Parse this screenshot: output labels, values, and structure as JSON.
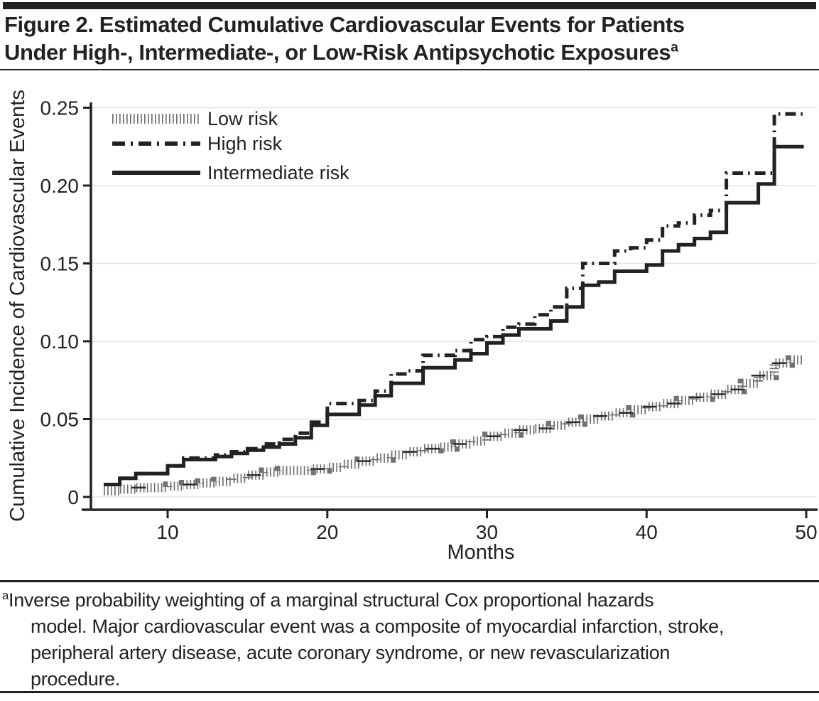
{
  "header": {
    "title_line1": "Figure 2. Estimated Cumulative Cardiovascular Events for Patients",
    "title_line2": "Under High-, Intermediate-, or Low-Risk Antipsychotic Exposures",
    "title_superscript": "a"
  },
  "footnote": {
    "marker": "a",
    "lines": [
      "Inverse probability weighting of a marginal structural Cox proportional hazards",
      "model. Major cardiovascular event was a composite of myocardial infarction, stroke,",
      "peripheral artery disease, acute coronary syndrome, or new revascularization",
      "procedure."
    ]
  },
  "colors": {
    "ink": "#242122",
    "gridline": "#e4e4e4",
    "hatch": "#4e4e4e"
  },
  "chart_data": {
    "type": "line",
    "subtype": "step-cumulative-incidence",
    "xlabel": "Months",
    "ylabel": "Cumulative Incidence of Cardiovascular Events",
    "xlim": [
      6,
      50
    ],
    "ylim": [
      0,
      0.25
    ],
    "x_ticks": [
      10,
      20,
      30,
      40,
      50
    ],
    "x_tick_labels": [
      "10",
      "20",
      "30",
      "40",
      "50"
    ],
    "y_ticks": [
      0,
      0.05,
      0.1,
      0.15,
      0.2,
      0.25
    ],
    "y_tick_labels": [
      "0",
      "0.05",
      "0.10",
      "0.15",
      "0.20",
      "0.25"
    ],
    "grid": "horizontal",
    "legend": {
      "position": "top-left",
      "entries": [
        {
          "label": "Low risk",
          "style": "vertical-hatch"
        },
        {
          "label": "High risk",
          "style": "dash-dot"
        },
        {
          "label": "Intermediate risk",
          "style": "solid"
        }
      ]
    },
    "series": [
      {
        "name": "Low risk",
        "style": "vertical-hatch",
        "points": [
          [
            6,
            0.004
          ],
          [
            7,
            0.005
          ],
          [
            8,
            0.006
          ],
          [
            10,
            0.007
          ],
          [
            11,
            0.008
          ],
          [
            12,
            0.009
          ],
          [
            13,
            0.01
          ],
          [
            14,
            0.012
          ],
          [
            15,
            0.014
          ],
          [
            16,
            0.016
          ],
          [
            17,
            0.017
          ],
          [
            19,
            0.018
          ],
          [
            20,
            0.019
          ],
          [
            21,
            0.021
          ],
          [
            22,
            0.023
          ],
          [
            23,
            0.025
          ],
          [
            24,
            0.027
          ],
          [
            25,
            0.029
          ],
          [
            26,
            0.031
          ],
          [
            27,
            0.032
          ],
          [
            28,
            0.034
          ],
          [
            29,
            0.036
          ],
          [
            30,
            0.039
          ],
          [
            31,
            0.041
          ],
          [
            32,
            0.043
          ],
          [
            33,
            0.044
          ],
          [
            34,
            0.046
          ],
          [
            35,
            0.048
          ],
          [
            36,
            0.05
          ],
          [
            37,
            0.052
          ],
          [
            38,
            0.054
          ],
          [
            39,
            0.056
          ],
          [
            40,
            0.058
          ],
          [
            41,
            0.06
          ],
          [
            42,
            0.062
          ],
          [
            43,
            0.064
          ],
          [
            44,
            0.066
          ],
          [
            45,
            0.069
          ],
          [
            46,
            0.073
          ],
          [
            47,
            0.078
          ],
          [
            48,
            0.086
          ],
          [
            49,
            0.088
          ]
        ]
      },
      {
        "name": "Intermediate risk",
        "style": "solid",
        "points": [
          [
            6,
            0.008
          ],
          [
            7,
            0.012
          ],
          [
            8,
            0.015
          ],
          [
            10,
            0.02
          ],
          [
            11,
            0.024
          ],
          [
            13,
            0.026
          ],
          [
            14,
            0.028
          ],
          [
            15,
            0.03
          ],
          [
            16,
            0.032
          ],
          [
            17,
            0.034
          ],
          [
            18,
            0.038
          ],
          [
            19,
            0.046
          ],
          [
            20,
            0.053
          ],
          [
            22,
            0.059
          ],
          [
            23,
            0.065
          ],
          [
            24,
            0.073
          ],
          [
            26,
            0.083
          ],
          [
            28,
            0.088
          ],
          [
            29,
            0.092
          ],
          [
            30,
            0.099
          ],
          [
            31,
            0.104
          ],
          [
            32,
            0.108
          ],
          [
            34,
            0.113
          ],
          [
            35,
            0.122
          ],
          [
            36,
            0.136
          ],
          [
            37,
            0.138
          ],
          [
            38,
            0.145
          ],
          [
            40,
            0.149
          ],
          [
            41,
            0.158
          ],
          [
            42,
            0.162
          ],
          [
            43,
            0.166
          ],
          [
            44,
            0.17
          ],
          [
            45,
            0.189
          ],
          [
            47,
            0.201
          ],
          [
            48,
            0.225
          ]
        ]
      },
      {
        "name": "High risk",
        "style": "dash-dot",
        "points": [
          [
            6,
            0.008
          ],
          [
            7,
            0.012
          ],
          [
            8,
            0.015
          ],
          [
            10,
            0.02
          ],
          [
            11,
            0.025
          ],
          [
            13,
            0.027
          ],
          [
            14,
            0.029
          ],
          [
            15,
            0.031
          ],
          [
            16,
            0.034
          ],
          [
            17,
            0.037
          ],
          [
            18,
            0.041
          ],
          [
            19,
            0.048
          ],
          [
            20,
            0.06
          ],
          [
            22,
            0.062
          ],
          [
            23,
            0.068
          ],
          [
            24,
            0.079
          ],
          [
            25,
            0.081
          ],
          [
            26,
            0.091
          ],
          [
            28,
            0.094
          ],
          [
            29,
            0.101
          ],
          [
            30,
            0.103
          ],
          [
            31,
            0.109
          ],
          [
            32,
            0.111
          ],
          [
            33,
            0.117
          ],
          [
            34,
            0.122
          ],
          [
            35,
            0.134
          ],
          [
            36,
            0.15
          ],
          [
            38,
            0.158
          ],
          [
            39,
            0.16
          ],
          [
            40,
            0.165
          ],
          [
            41,
            0.174
          ],
          [
            42,
            0.176
          ],
          [
            43,
            0.181
          ],
          [
            44,
            0.184
          ],
          [
            45,
            0.208
          ],
          [
            48,
            0.246
          ]
        ]
      }
    ],
    "censor_marks": {
      "series": "Low risk",
      "months": [
        8.2,
        11.4,
        15.4,
        19.4,
        22.3,
        25.2,
        26.6,
        28.3,
        30.4,
        32.1,
        33.7,
        35.4,
        37.1,
        38.7,
        40.2,
        41.7,
        43.1,
        44.5,
        45.7,
        47.0,
        48.3
      ]
    }
  }
}
